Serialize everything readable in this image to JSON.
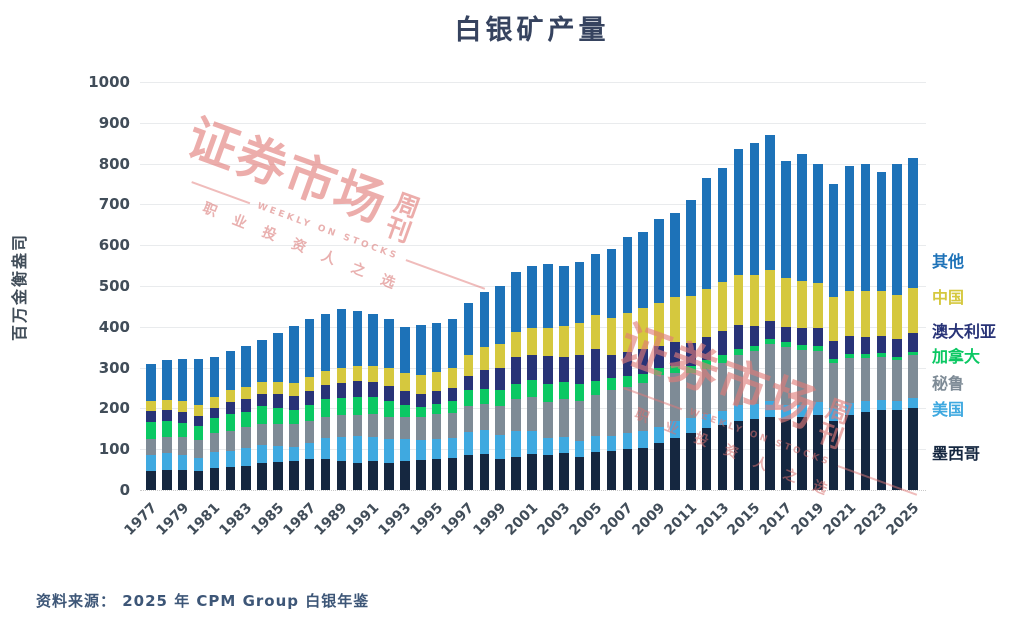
{
  "page": {
    "title": "白银矿产量",
    "source": "资料来源： 2025 年 CPM Group 白银年鉴"
  },
  "watermark": {
    "main": "证券市场",
    "sub": "周刊",
    "tagline_en": "WEEKLY ON STOCKS",
    "tagline_cn": "职业投资人之选"
  },
  "chart_data": {
    "type": "bar",
    "stacked": true,
    "title": "白银矿产量",
    "xlabel": "",
    "ylabel": "百万金衡盎司",
    "ylim": [
      0,
      1000
    ],
    "ytick_interval": 100,
    "yticks": [
      "0",
      "100",
      "200",
      "300",
      "400",
      "500",
      "600",
      "700",
      "800",
      "900",
      "1000"
    ],
    "grid": "horizontal",
    "legend_position": "right",
    "x": [
      1977,
      1978,
      1979,
      1980,
      1981,
      1982,
      1983,
      1984,
      1985,
      1986,
      1987,
      1988,
      1989,
      1990,
      1991,
      1992,
      1993,
      1994,
      1995,
      1996,
      1997,
      1998,
      1999,
      2000,
      2001,
      2002,
      2003,
      2004,
      2005,
      2006,
      2007,
      2008,
      2009,
      2010,
      2011,
      2012,
      2013,
      2014,
      2015,
      2016,
      2017,
      2018,
      2019,
      2020,
      2021,
      2022,
      2023,
      2024,
      2025
    ],
    "xtick_labels": [
      "1977",
      "1979",
      "1981",
      "1983",
      "1985",
      "1987",
      "1989",
      "1991",
      "1993",
      "1995",
      "1997",
      "1999",
      "2001",
      "2003",
      "2005",
      "2007",
      "2009",
      "2011",
      "2013",
      "2015",
      "2017",
      "2019",
      "2021",
      "2023",
      "2025"
    ],
    "series": [
      {
        "name": "墨西哥",
        "color": "#152740",
        "values": [
          47,
          50,
          49,
          47,
          53,
          56,
          60,
          65,
          69,
          72,
          75,
          75,
          71,
          67,
          70,
          67,
          71,
          74,
          76,
          78,
          85,
          88,
          75,
          82,
          88,
          85,
          90,
          80,
          93,
          96,
          100,
          104,
          115,
          128,
          140,
          152,
          160,
          170,
          175,
          180,
          175,
          180,
          185,
          170,
          185,
          190,
          195,
          195,
          200
        ]
      },
      {
        "name": "美国",
        "color": "#3fa9e0",
        "values": [
          38,
          40,
          38,
          32,
          41,
          40,
          43,
          45,
          39,
          34,
          40,
          53,
          58,
          66,
          60,
          58,
          53,
          48,
          50,
          49,
          56,
          58,
          61,
          63,
          56,
          43,
          40,
          40,
          39,
          37,
          40,
          40,
          40,
          41,
          36,
          34,
          33,
          38,
          35,
          37,
          33,
          29,
          31,
          32,
          29,
          28,
          25,
          23,
          25
        ]
      },
      {
        "name": "秘鲁",
        "color": "#7e8b96",
        "values": [
          39,
          40,
          42,
          44,
          46,
          49,
          51,
          53,
          55,
          56,
          55,
          50,
          55,
          51,
          56,
          54,
          55,
          57,
          61,
          63,
          66,
          65,
          71,
          78,
          84,
          89,
          94,
          98,
          102,
          111,
          112,
          118,
          126,
          117,
          110,
          111,
          118,
          122,
          132,
          140,
          143,
          135,
          125,
          110,
          110,
          105,
          107,
          100,
          105
        ]
      },
      {
        "name": "加拿大",
        "color": "#0bc863",
        "values": [
          42,
          40,
          36,
          34,
          36,
          42,
          37,
          42,
          38,
          35,
          38,
          44,
          41,
          45,
          42,
          38,
          29,
          24,
          25,
          27,
          38,
          37,
          37,
          37,
          41,
          44,
          42,
          41,
          34,
          31,
          27,
          22,
          19,
          18,
          19,
          21,
          21,
          16,
          12,
          13,
          12,
          12,
          12,
          9,
          10,
          10,
          10,
          9,
          9
        ]
      },
      {
        "name": "澳大利亚",
        "color": "#283377",
        "values": [
          27,
          26,
          27,
          25,
          24,
          29,
          33,
          31,
          34,
          33,
          35,
          36,
          37,
          38,
          37,
          39,
          35,
          33,
          30,
          32,
          35,
          47,
          55,
          66,
          62,
          67,
          60,
          71,
          77,
          56,
          60,
          62,
          53,
          60,
          56,
          57,
          59,
          59,
          47,
          44,
          36,
          41,
          43,
          44,
          44,
          42,
          40,
          42,
          45
        ]
      },
      {
        "name": "中国",
        "color": "#d5c83e",
        "values": [
          25,
          25,
          26,
          26,
          27,
          28,
          29,
          30,
          31,
          32,
          33,
          34,
          36,
          38,
          40,
          42,
          44,
          46,
          48,
          50,
          52,
          55,
          58,
          62,
          66,
          70,
          75,
          80,
          85,
          90,
          95,
          100,
          105,
          110,
          115,
          118,
          120,
          122,
          125,
          125,
          120,
          115,
          112,
          108,
          110,
          112,
          112,
          110,
          110
        ]
      },
      {
        "name": "其他",
        "color": "#1d72b8",
        "values": [
          92,
          97,
          102,
          114,
          98,
          96,
          99,
          102,
          119,
          140,
          144,
          140,
          145,
          135,
          127,
          122,
          113,
          123,
          120,
          121,
          126,
          135,
          143,
          147,
          153,
          157,
          149,
          150,
          148,
          169,
          186,
          186,
          207,
          206,
          236,
          272,
          279,
          308,
          324,
          331,
          287,
          312,
          290,
          277,
          307,
          313,
          291,
          321,
          321
        ]
      }
    ],
    "legend": {
      "items": [
        "其他",
        "中国",
        "澳大利亚",
        "加拿大",
        "秘鲁",
        "美国",
        "墨西哥"
      ]
    }
  }
}
